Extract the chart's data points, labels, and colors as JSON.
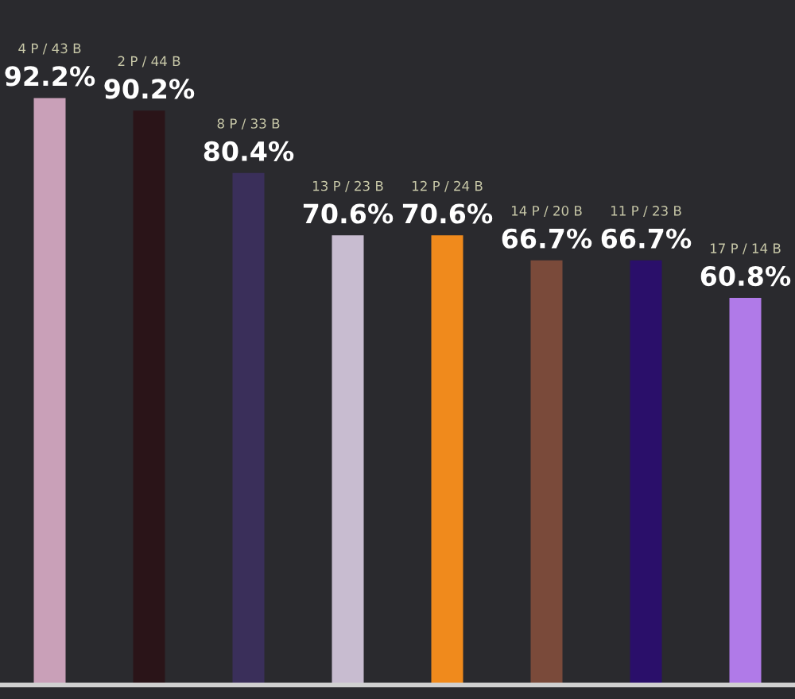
{
  "chart_data": {
    "type": "bar",
    "categories": [
      null,
      null,
      null,
      null,
      null,
      null,
      null,
      null
    ],
    "values": [
      92.2,
      90.2,
      80.4,
      70.6,
      70.6,
      66.7,
      66.7,
      60.8
    ],
    "colors": [
      "#c9a0b8",
      "#2a1418",
      "#3a2f5a",
      "#c8bcd0",
      "#f08a1c",
      "#7a4a3a",
      "#2a0f6a",
      "#b07ae8"
    ],
    "value_labels": [
      "92.2%",
      "90.2%",
      "80.4%",
      "70.6%",
      "70.6%",
      "66.7%",
      "66.7%",
      "60.8%"
    ],
    "annotations": [
      "4 P / 43 B",
      "2 P / 44 B",
      "8 P / 33 B",
      "13 P / 23 B",
      "12 P / 24 B",
      "14 P / 20 B",
      "11 P / 23 B",
      "17 P / 14 B"
    ],
    "grid": false,
    "legend": false
  }
}
